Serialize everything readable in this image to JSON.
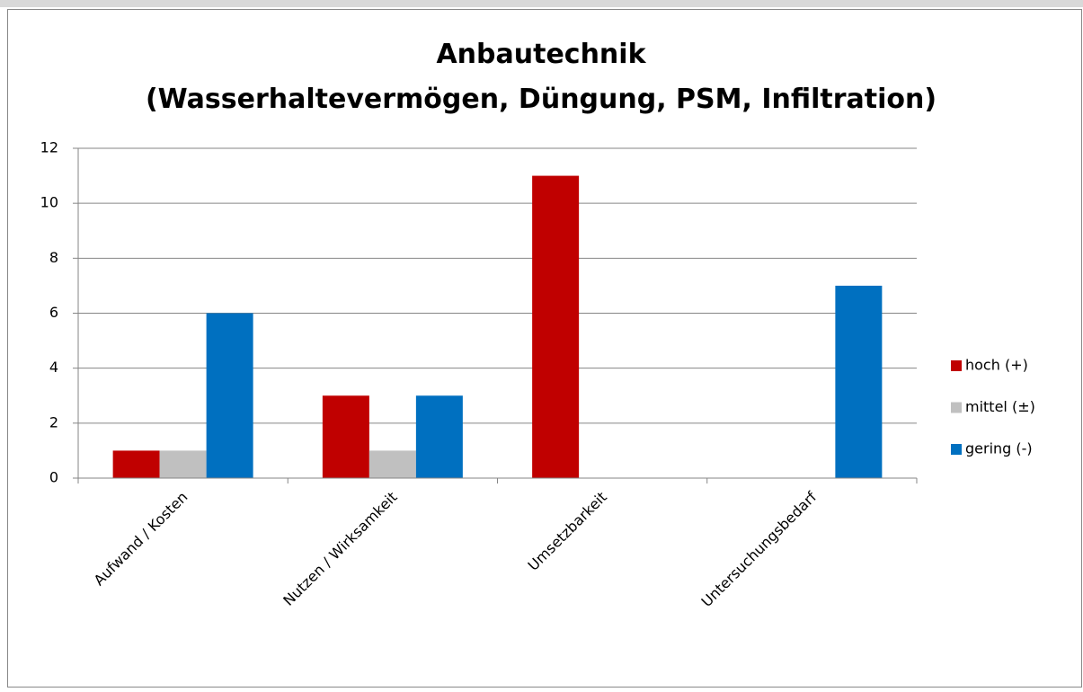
{
  "chart_data": {
    "type": "bar",
    "title": [
      "Anbautechnik",
      "(Wasserhaltevermögen, Düngung, PSM, Infiltration)"
    ],
    "categories": [
      "Aufwand / Kosten",
      "Nutzen / Wirksamkeit",
      "Umsetzbarkeit",
      "Untersuchungsbedarf"
    ],
    "series": [
      {
        "name": "hoch (+)",
        "color": "#c00000",
        "values": [
          1,
          3,
          11,
          0
        ]
      },
      {
        "name": "mittel (±)",
        "color": "#c0c0c0",
        "values": [
          1,
          1,
          0,
          0
        ]
      },
      {
        "name": "gering (-)",
        "color": "#0070c0",
        "values": [
          6,
          3,
          0,
          7
        ]
      }
    ],
    "ylim": [
      0,
      12
    ],
    "yticks": [
      0,
      2,
      4,
      6,
      8,
      10,
      12
    ],
    "grid": true,
    "legend": "right"
  }
}
